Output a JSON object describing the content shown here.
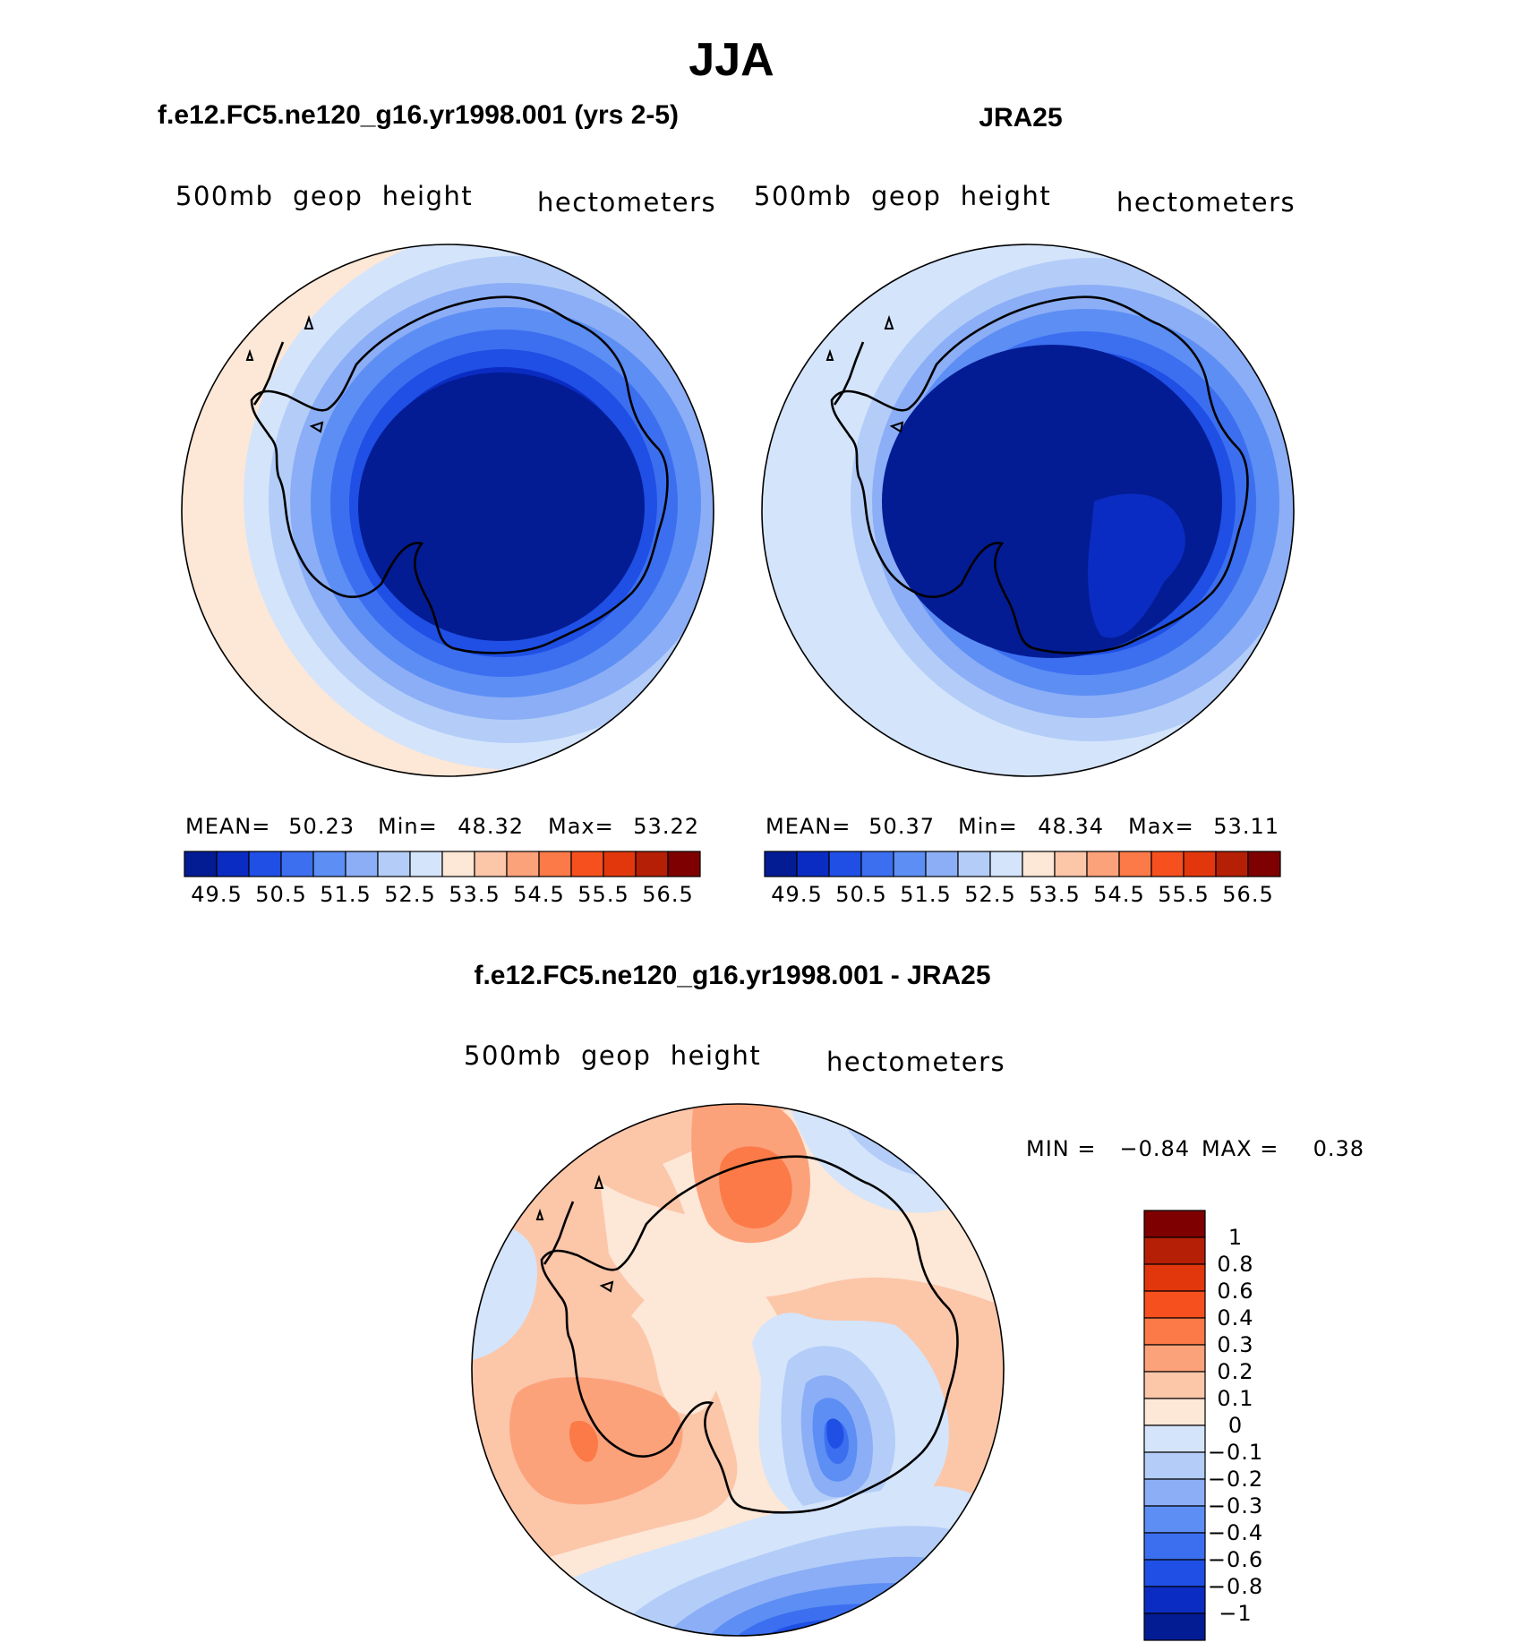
{
  "title": "JJA",
  "colors": {
    "pos": [
      "#fde7d6",
      "#fcc6a9",
      "#fca27b",
      "#fb7a48",
      "#f6501f",
      "#e2370d",
      "#b41f06",
      "#7e0000"
    ],
    "neg": [
      "#d4e4fb",
      "#b3cdf8",
      "#8baef6",
      "#5d8ef4",
      "#3c6ff0",
      "#1f4fe4",
      "#0b2cc2",
      "#031c94",
      "#00107a"
    ]
  },
  "chart_data": [
    {
      "type": "heatmap",
      "projection": "south-polar-stereographic",
      "title": "f.e12.FC5.ne120_g16.yr1998.001 (yrs 2-5)",
      "variable": "500mb  geop  height",
      "units": "hectometers",
      "stats": {
        "mean_label": "MEAN=",
        "mean": "50.23",
        "min_label": "Min=",
        "min": "48.32",
        "max_label": "Max=",
        "max": "53.22"
      },
      "levels": [
        49.5,
        50,
        50.5,
        51,
        51.5,
        52,
        52.5,
        53,
        53.5,
        54,
        54.5,
        55,
        55.5,
        56,
        56.5
      ],
      "tick_labels": [
        "49.5",
        "50.5",
        "51.5",
        "52.5",
        "53.5",
        "54.5",
        "55.5",
        "56.5"
      ]
    },
    {
      "type": "heatmap",
      "projection": "south-polar-stereographic",
      "title": "JRA25",
      "variable": "500mb  geop  height",
      "units": "hectometers",
      "stats": {
        "mean_label": "MEAN=",
        "mean": "50.37",
        "min_label": "Min=",
        "min": "48.34",
        "max_label": "Max=",
        "max": "53.11"
      },
      "levels": [
        49.5,
        50,
        50.5,
        51,
        51.5,
        52,
        52.5,
        53,
        53.5,
        54,
        54.5,
        55,
        55.5,
        56,
        56.5
      ],
      "tick_labels": [
        "49.5",
        "50.5",
        "51.5",
        "52.5",
        "53.5",
        "54.5",
        "55.5",
        "56.5"
      ]
    },
    {
      "type": "heatmap",
      "projection": "south-polar-stereographic",
      "title": "f.e12.FC5.ne120_g16.yr1998.001 - JRA25",
      "variable": "500mb  geop  height",
      "units": "hectometers",
      "stats": {
        "min_label": "MIN =",
        "min": "−0.84",
        "max_label": "MAX =",
        "max": "0.38"
      },
      "levels": [
        -1,
        -0.8,
        -0.6,
        -0.4,
        -0.3,
        -0.2,
        -0.1,
        0,
        0.1,
        0.2,
        0.3,
        0.4,
        0.6,
        0.8,
        1
      ],
      "tick_labels": [
        "1",
        "0.8",
        "0.6",
        "0.4",
        "0.3",
        "0.2",
        "0.1",
        "0",
        "−0.1",
        "−0.2",
        "−0.3",
        "−0.4",
        "−0.6",
        "−0.8",
        "−1"
      ]
    }
  ]
}
